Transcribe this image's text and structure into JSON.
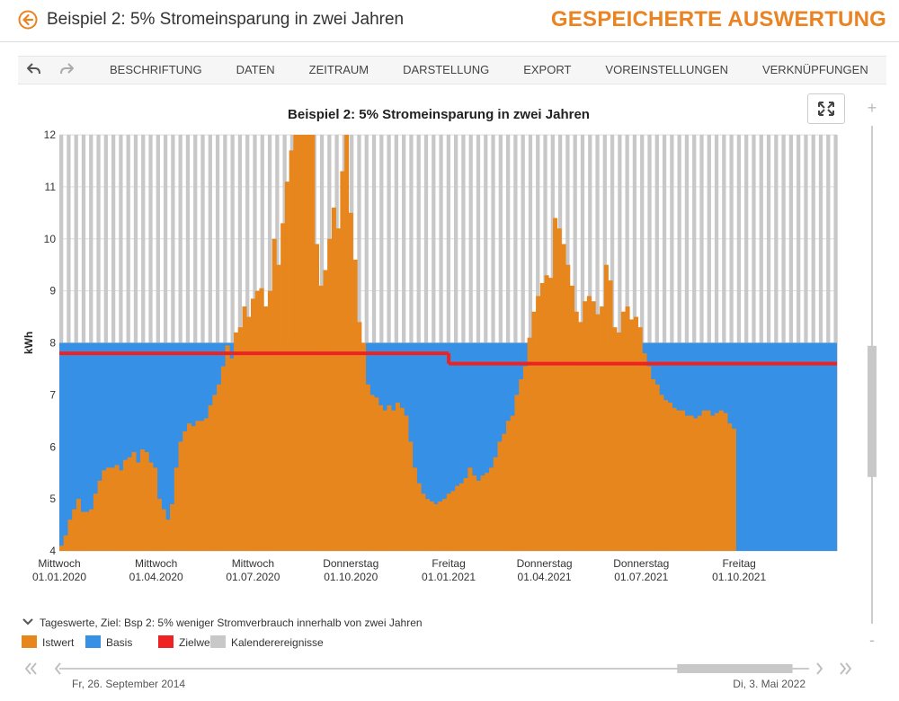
{
  "header": {
    "title": "Beispiel 2: 5% Stromeinsparung in zwei Jahren",
    "brand": "GESPEICHERTE AUSWERTUNG"
  },
  "toolbar": {
    "undo_icon": "undo-icon",
    "redo_icon": "redo-icon",
    "menu": [
      "BESCHRIFTUNG",
      "DATEN",
      "ZEITRAUM",
      "DARSTELLUNG",
      "EXPORT",
      "VOREINSTELLUNGEN",
      "VERKNÜPFUNGEN"
    ]
  },
  "fullscreen_icon": "expand-icon",
  "colors": {
    "accent": "#ea8322",
    "istwert": "#e8861e",
    "basis": "#3690e6",
    "zielwert": "#ee2222",
    "kalender": "#c8c8c8"
  },
  "chart_data": {
    "type": "bar",
    "title": "Beispiel 2: 5% Stromeinsparung in zwei Jahren",
    "ylabel": "kWh",
    "ylim": [
      4,
      12
    ],
    "yticks": [
      4,
      5,
      6,
      7,
      8,
      9,
      10,
      11,
      12
    ],
    "x_range": [
      "2020-01-01",
      "2021-12-31"
    ],
    "xticks": [
      {
        "date": "2020-01-01",
        "weekday": "Mittwoch",
        "label": "01.01.2020"
      },
      {
        "date": "2020-04-01",
        "weekday": "Mittwoch",
        "label": "01.04.2020"
      },
      {
        "date": "2020-07-01",
        "weekday": "Mittwoch",
        "label": "01.07.2020"
      },
      {
        "date": "2020-10-01",
        "weekday": "Donnerstag",
        "label": "01.10.2020"
      },
      {
        "date": "2021-01-01",
        "weekday": "Freitag",
        "label": "01.01.2021"
      },
      {
        "date": "2021-04-01",
        "weekday": "Donnerstag",
        "label": "01.04.2021"
      },
      {
        "date": "2021-07-01",
        "weekday": "Donnerstag",
        "label": "01.07.2021"
      },
      {
        "date": "2021-10-01",
        "weekday": "Freitag",
        "label": "01.10.2021"
      }
    ],
    "series": [
      {
        "name": "Istwert",
        "interval_days": 4,
        "values": [
          4.1,
          4.3,
          4.6,
          4.8,
          5.0,
          4.75,
          4.75,
          4.8,
          5.1,
          5.35,
          5.55,
          5.6,
          5.6,
          5.65,
          5.55,
          5.75,
          5.8,
          5.9,
          5.7,
          5.95,
          5.9,
          5.7,
          5.6,
          5.0,
          4.8,
          4.6,
          4.9,
          5.6,
          6.1,
          6.3,
          6.45,
          6.4,
          6.5,
          6.5,
          6.55,
          6.8,
          7.0,
          7.2,
          7.55,
          7.95,
          7.7,
          8.2,
          8.3,
          8.7,
          8.5,
          8.85,
          9.0,
          9.05,
          8.7,
          9.0,
          10.0,
          9.5,
          10.3,
          11.1,
          11.7,
          12.0,
          12.0,
          12.0,
          12.0,
          12.0,
          9.9,
          9.1,
          9.4,
          10.0,
          10.6,
          10.2,
          11.3,
          12.0,
          10.5,
          9.6,
          8.4,
          8.0,
          7.2,
          7.0,
          6.95,
          6.8,
          6.7,
          6.8,
          6.7,
          6.85,
          6.75,
          6.6,
          6.1,
          5.6,
          5.3,
          5.1,
          5.0,
          4.95,
          4.9,
          4.95,
          5.0,
          5.1,
          5.15,
          5.25,
          5.3,
          5.4,
          5.6,
          5.45,
          5.35,
          5.45,
          5.5,
          5.6,
          5.8,
          6.1,
          6.25,
          6.5,
          6.6,
          7.0,
          7.3,
          7.55,
          8.1,
          8.6,
          8.9,
          9.15,
          9.3,
          9.25,
          10.4,
          10.2,
          9.9,
          9.5,
          9.1,
          8.6,
          8.4,
          8.8,
          8.9,
          8.8,
          8.55,
          8.7,
          9.5,
          9.2,
          8.3,
          8.2,
          8.6,
          8.7,
          8.45,
          8.5,
          8.3,
          7.8,
          7.55,
          7.3,
          7.2,
          7.0,
          6.9,
          6.85,
          6.75,
          6.7,
          6.7,
          6.6,
          6.6,
          6.55,
          6.6,
          6.7,
          6.7,
          6.6,
          6.65,
          6.7,
          6.65,
          6.45,
          6.35
        ]
      },
      {
        "name": "Basis",
        "value": 8
      },
      {
        "name": "Zielwert",
        "segments": [
          {
            "from": "2020-01-01",
            "to": "2020-12-31",
            "value": 7.8
          },
          {
            "from": "2021-01-01",
            "to": "2021-12-31",
            "value": 7.6
          }
        ]
      },
      {
        "name": "Kalenderereignisse",
        "value": 12
      }
    ],
    "legend": {
      "collapse_label": "Tageswerte, Ziel: Bsp 2: 5% weniger Stromverbrauch innerhalb von zwei Jahren",
      "items": [
        "Istwert",
        "Basis",
        "Zielwert",
        "Kalenderereignisse"
      ],
      "position": "bottom-left"
    },
    "grid": true
  },
  "navigator": {
    "start_label": "Fr, 26. September 2014",
    "end_label": "Di, 3. Mai 2022",
    "window_start": 0.824,
    "window_end": 0.978
  },
  "vscroll": {
    "plus": "+",
    "minus": "-",
    "position": 0.6
  }
}
